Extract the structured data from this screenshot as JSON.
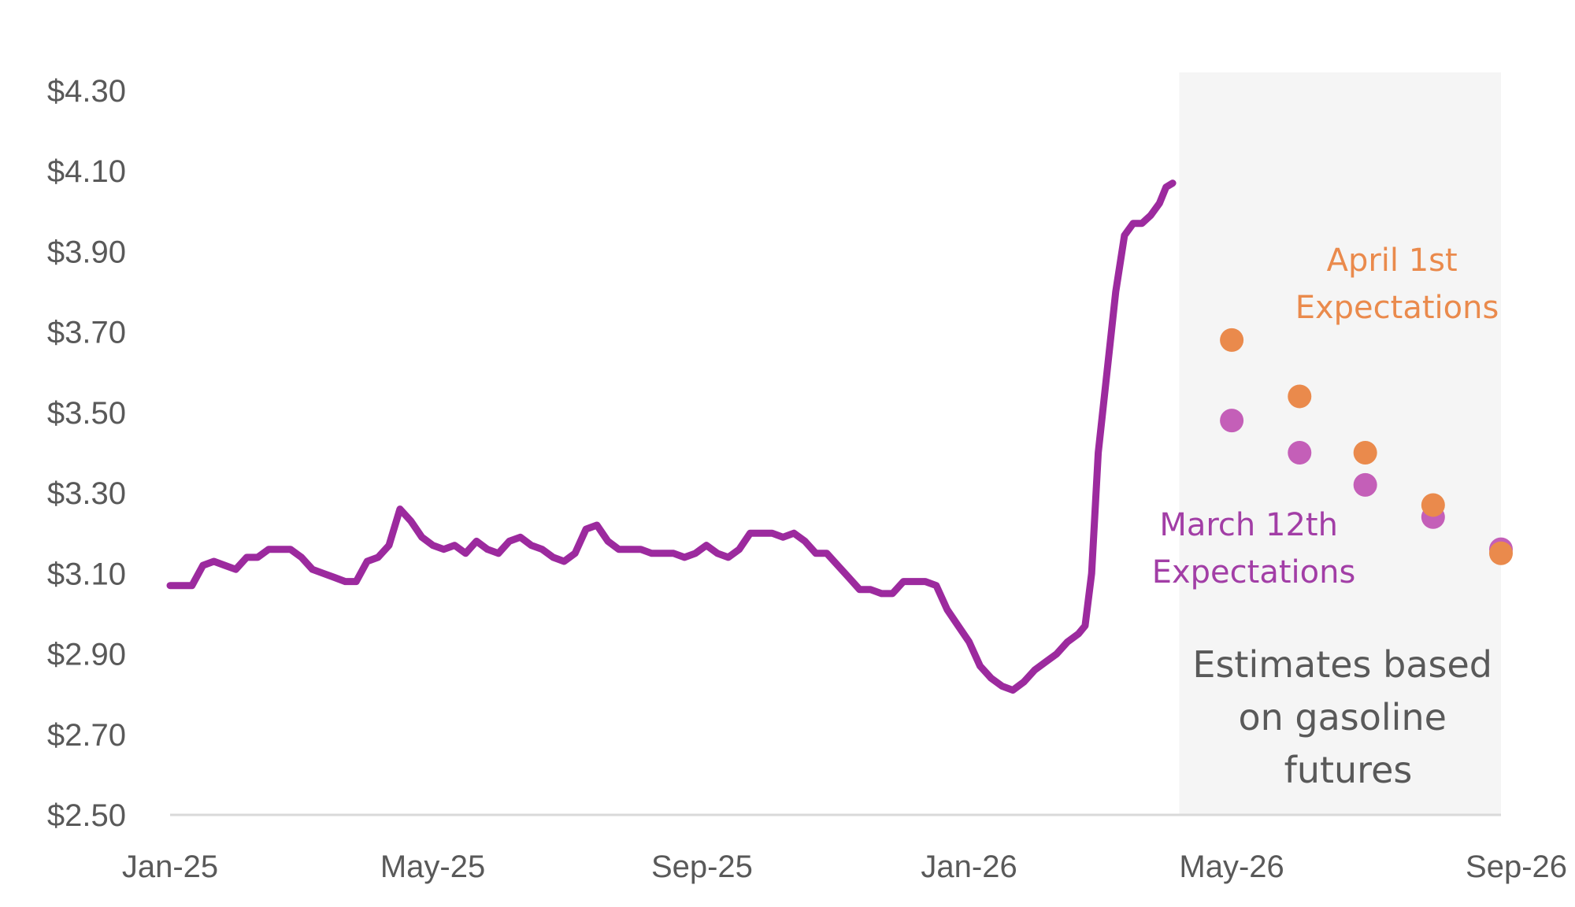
{
  "chart_data": {
    "type": "line",
    "title": "",
    "xlabel": "",
    "ylabel": "",
    "ylim": [
      2.5,
      4.3
    ],
    "yticks": [
      "$4.30",
      "$4.10",
      "$3.90",
      "$3.70",
      "$3.50",
      "$3.30",
      "$3.10",
      "$2.90",
      "$2.70",
      "$2.50"
    ],
    "ytick_values": [
      4.3,
      4.1,
      3.9,
      3.7,
      3.5,
      3.3,
      3.1,
      2.9,
      2.7,
      2.5
    ],
    "xlim": [
      "2025-01-01",
      "2026-09-01"
    ],
    "xticks": [
      {
        "label": "Jan-25",
        "date": "2025-01-01"
      },
      {
        "label": "May-25",
        "date": "2025-05-01"
      },
      {
        "label": "Sep-25",
        "date": "2025-09-01"
      },
      {
        "label": "Jan-26",
        "date": "2026-01-01"
      },
      {
        "label": "May-26",
        "date": "2026-05-01"
      },
      {
        "label": "Sep-26",
        "date": "2026-09-01"
      }
    ],
    "grid": false,
    "legend": "none",
    "shaded_region": {
      "start": "2026-04-07",
      "end": "2026-09-01",
      "color": "#f5f5f5"
    },
    "series": [
      {
        "type": "line",
        "color": "#9c2a9e",
        "points": [
          [
            "2025-01-01",
            3.07
          ],
          [
            "2025-01-06",
            3.07
          ],
          [
            "2025-01-11",
            3.07
          ],
          [
            "2025-01-16",
            3.12
          ],
          [
            "2025-01-21",
            3.13
          ],
          [
            "2025-01-26",
            3.12
          ],
          [
            "2025-01-31",
            3.11
          ],
          [
            "2025-02-05",
            3.14
          ],
          [
            "2025-02-10",
            3.14
          ],
          [
            "2025-02-15",
            3.16
          ],
          [
            "2025-02-20",
            3.16
          ],
          [
            "2025-02-25",
            3.16
          ],
          [
            "2025-03-02",
            3.14
          ],
          [
            "2025-03-07",
            3.11
          ],
          [
            "2025-03-12",
            3.1
          ],
          [
            "2025-03-17",
            3.09
          ],
          [
            "2025-03-22",
            3.08
          ],
          [
            "2025-03-27",
            3.08
          ],
          [
            "2025-04-01",
            3.13
          ],
          [
            "2025-04-06",
            3.14
          ],
          [
            "2025-04-11",
            3.17
          ],
          [
            "2025-04-16",
            3.26
          ],
          [
            "2025-04-21",
            3.23
          ],
          [
            "2025-04-26",
            3.19
          ],
          [
            "2025-05-01",
            3.17
          ],
          [
            "2025-05-06",
            3.16
          ],
          [
            "2025-05-11",
            3.17
          ],
          [
            "2025-05-16",
            3.15
          ],
          [
            "2025-05-21",
            3.18
          ],
          [
            "2025-05-26",
            3.16
          ],
          [
            "2025-05-31",
            3.15
          ],
          [
            "2025-06-05",
            3.18
          ],
          [
            "2025-06-10",
            3.19
          ],
          [
            "2025-06-15",
            3.17
          ],
          [
            "2025-06-20",
            3.16
          ],
          [
            "2025-06-25",
            3.14
          ],
          [
            "2025-06-30",
            3.13
          ],
          [
            "2025-07-05",
            3.15
          ],
          [
            "2025-07-10",
            3.21
          ],
          [
            "2025-07-15",
            3.22
          ],
          [
            "2025-07-20",
            3.18
          ],
          [
            "2025-07-25",
            3.16
          ],
          [
            "2025-07-30",
            3.16
          ],
          [
            "2025-08-04",
            3.16
          ],
          [
            "2025-08-09",
            3.15
          ],
          [
            "2025-08-14",
            3.15
          ],
          [
            "2025-08-19",
            3.15
          ],
          [
            "2025-08-24",
            3.14
          ],
          [
            "2025-08-29",
            3.15
          ],
          [
            "2025-09-03",
            3.17
          ],
          [
            "2025-09-08",
            3.15
          ],
          [
            "2025-09-13",
            3.14
          ],
          [
            "2025-09-18",
            3.16
          ],
          [
            "2025-09-23",
            3.2
          ],
          [
            "2025-09-28",
            3.2
          ],
          [
            "2025-10-03",
            3.2
          ],
          [
            "2025-10-08",
            3.19
          ],
          [
            "2025-10-13",
            3.2
          ],
          [
            "2025-10-18",
            3.18
          ],
          [
            "2025-10-23",
            3.15
          ],
          [
            "2025-10-28",
            3.15
          ],
          [
            "2025-11-02",
            3.12
          ],
          [
            "2025-11-07",
            3.09
          ],
          [
            "2025-11-12",
            3.06
          ],
          [
            "2025-11-17",
            3.06
          ],
          [
            "2025-11-22",
            3.05
          ],
          [
            "2025-11-27",
            3.05
          ],
          [
            "2025-12-02",
            3.08
          ],
          [
            "2025-12-07",
            3.08
          ],
          [
            "2025-12-12",
            3.08
          ],
          [
            "2025-12-17",
            3.07
          ],
          [
            "2025-12-22",
            3.01
          ],
          [
            "2025-12-27",
            2.97
          ],
          [
            "2026-01-01",
            2.93
          ],
          [
            "2026-01-06",
            2.87
          ],
          [
            "2026-01-11",
            2.84
          ],
          [
            "2026-01-16",
            2.82
          ],
          [
            "2026-01-21",
            2.81
          ],
          [
            "2026-01-26",
            2.83
          ],
          [
            "2026-01-31",
            2.86
          ],
          [
            "2026-02-05",
            2.88
          ],
          [
            "2026-02-10",
            2.9
          ],
          [
            "2026-02-15",
            2.93
          ],
          [
            "2026-02-20",
            2.95
          ],
          [
            "2026-02-23",
            2.97
          ],
          [
            "2026-02-26",
            3.1
          ],
          [
            "2026-03-01",
            3.4
          ],
          [
            "2026-03-05",
            3.6
          ],
          [
            "2026-03-09",
            3.8
          ],
          [
            "2026-03-13",
            3.94
          ],
          [
            "2026-03-17",
            3.97
          ],
          [
            "2026-03-21",
            3.97
          ],
          [
            "2026-03-25",
            3.99
          ],
          [
            "2026-03-29",
            4.02
          ],
          [
            "2026-04-01",
            4.06
          ],
          [
            "2026-04-04",
            4.07
          ]
        ]
      },
      {
        "type": "scatter",
        "color": "#c45fb8",
        "points": [
          [
            "2026-05-01",
            3.48
          ],
          [
            "2026-06-01",
            3.4
          ],
          [
            "2026-07-01",
            3.32
          ],
          [
            "2026-08-01",
            3.24
          ],
          [
            "2026-09-01",
            3.16
          ]
        ]
      },
      {
        "type": "scatter",
        "color": "#ea8a4c",
        "points": [
          [
            "2026-05-01",
            3.68
          ],
          [
            "2026-06-01",
            3.54
          ],
          [
            "2026-07-01",
            3.4
          ],
          [
            "2026-08-01",
            3.27
          ],
          [
            "2026-09-01",
            3.15
          ]
        ]
      }
    ],
    "annotations": {
      "april": [
        "April 1st",
        "Expectations"
      ],
      "march": [
        "March 12th",
        "Expectations"
      ],
      "estimates": [
        "Estimates based",
        "on gasoline",
        "futures"
      ]
    }
  }
}
